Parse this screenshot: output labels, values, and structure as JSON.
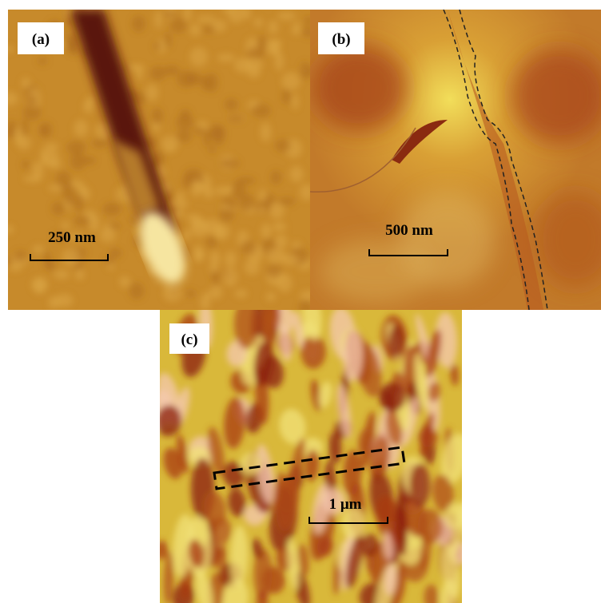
{
  "panels": [
    {
      "label": "(a)",
      "scale_bar": "250 nm"
    },
    {
      "label": "(b)",
      "scale_bar": "500 nm"
    },
    {
      "label": "(c)",
      "scale_bar": "1 μm"
    }
  ]
}
